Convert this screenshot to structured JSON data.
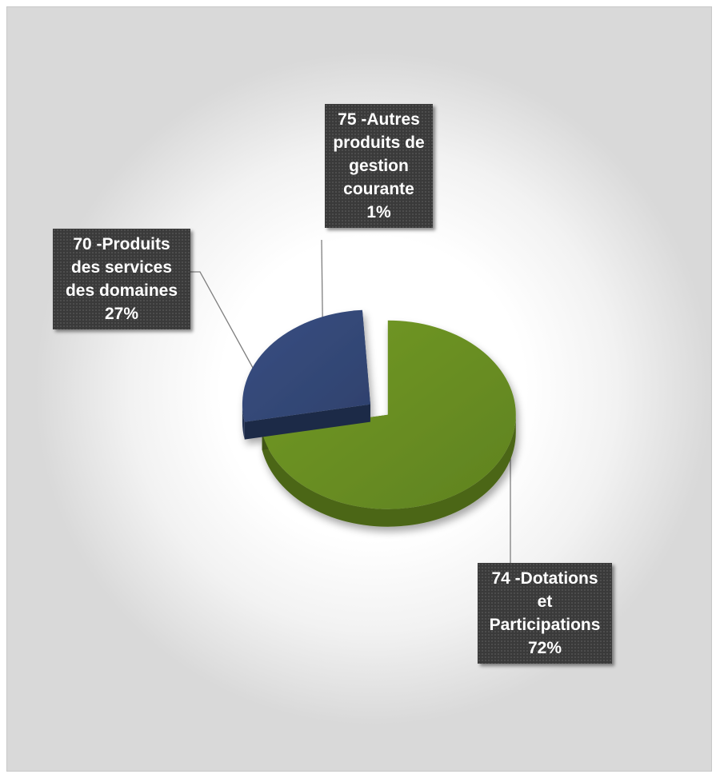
{
  "chart_data": {
    "type": "pie",
    "title": "",
    "slices": [
      {
        "label": "74 -Dotations et Participations",
        "value": 72,
        "display": "72%",
        "color": "#6a8e23"
      },
      {
        "label": "70 -Produits des services des domaines",
        "value": 27,
        "display": "27%",
        "color": "#344877"
      },
      {
        "label": "75 -Autres produits de gestion courante",
        "value": 1,
        "display": "1%",
        "color": "#ffffff"
      }
    ],
    "legend": "none",
    "style": "3d-exploded"
  },
  "labels": {
    "autres": {
      "lines": [
        "75 -Autres",
        "produits de",
        "gestion",
        "courante"
      ],
      "pct": "1%"
    },
    "produits": {
      "lines": [
        "70 -Produits",
        "des services",
        "des domaines"
      ],
      "pct": "27%"
    },
    "dotations": {
      "lines": [
        "74 -Dotations",
        "et",
        "Participations"
      ],
      "pct": "72%"
    }
  }
}
